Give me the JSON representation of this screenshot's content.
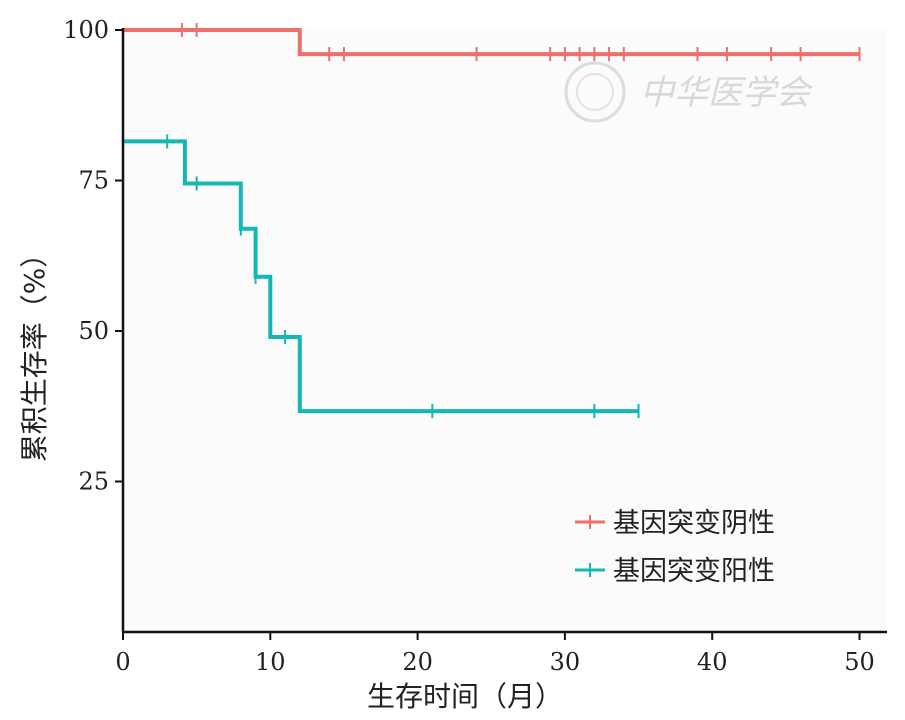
{
  "chart_data": {
    "type": "line",
    "title": "",
    "xlabel": "生存时间（月）",
    "ylabel": "累积生存率（%）",
    "xlim": [
      0,
      52
    ],
    "ylim": [
      0,
      100
    ],
    "x_ticks": [
      "0",
      "10",
      "20",
      "30",
      "40",
      "50"
    ],
    "y_ticks": [
      "25",
      "50",
      "75",
      "100"
    ],
    "legend_position": "bottom-right",
    "watermark": "中华医学会",
    "series": [
      {
        "name": "基因突变阴性",
        "color": "#ef6f6a",
        "step_points": [
          [
            0,
            100
          ],
          [
            12,
            100
          ],
          [
            12,
            96
          ],
          [
            50,
            96
          ]
        ],
        "censor_times": [
          4,
          5,
          14,
          15,
          24,
          29,
          30,
          31,
          32,
          33,
          34,
          39,
          41,
          44,
          46,
          50
        ]
      },
      {
        "name": "基因突变阳性",
        "color": "#14b7b4",
        "step_points": [
          [
            0,
            81.5
          ],
          [
            4.2,
            81.5
          ],
          [
            4.2,
            74.5
          ],
          [
            8,
            74.5
          ],
          [
            8,
            67
          ],
          [
            9,
            67
          ],
          [
            9,
            59
          ],
          [
            10,
            59
          ],
          [
            10,
            49
          ],
          [
            12,
            49
          ],
          [
            12,
            36.7
          ],
          [
            35,
            36.7
          ]
        ],
        "censor_times": [
          3,
          5,
          8,
          9,
          11,
          21,
          32,
          35
        ]
      }
    ]
  }
}
